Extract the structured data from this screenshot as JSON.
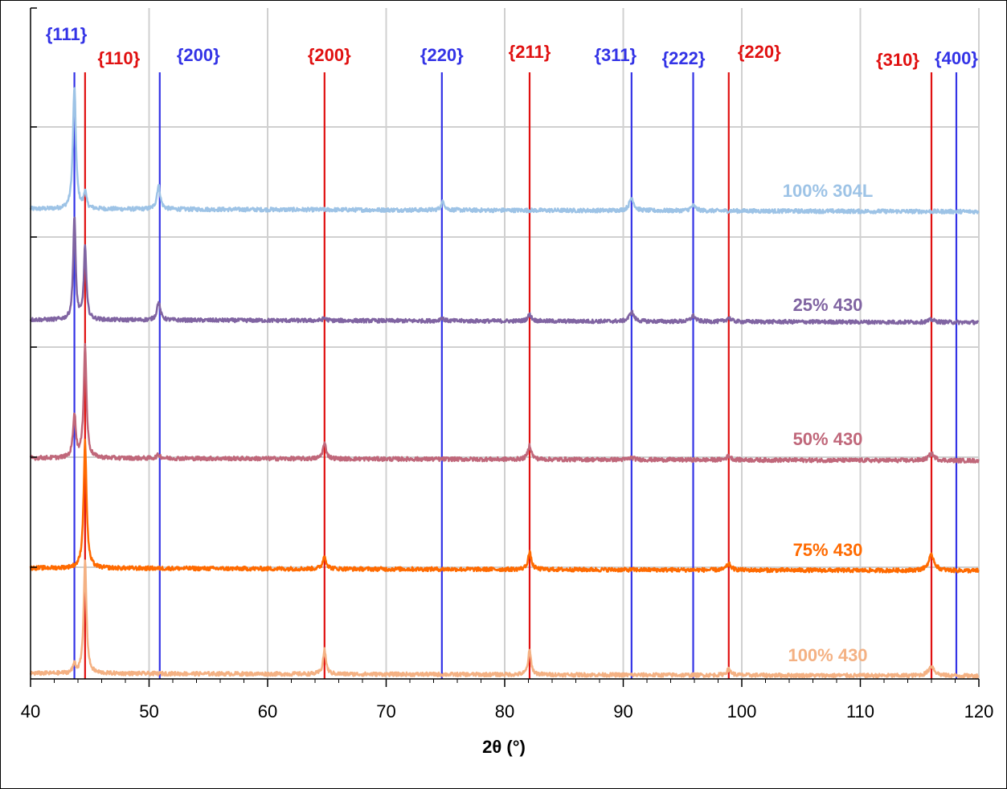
{
  "chart_data": {
    "type": "line",
    "xlabel": "2θ (°)",
    "ylabel": "",
    "xlim": [
      40,
      120
    ],
    "xticks": [
      40,
      50,
      60,
      70,
      80,
      90,
      100,
      110,
      120
    ],
    "grid": true,
    "colors": {
      "fcc_reference": "#3333e6",
      "bcc_reference": "#e01010"
    },
    "reference_lines": [
      {
        "plane": "{111}",
        "x": 43.7,
        "phase": "fcc"
      },
      {
        "plane": "{110}",
        "x": 44.6,
        "phase": "bcc"
      },
      {
        "plane": "{200}",
        "x": 50.9,
        "phase": "fcc"
      },
      {
        "plane": "{200}",
        "x": 64.8,
        "phase": "bcc"
      },
      {
        "plane": "{220}",
        "x": 74.7,
        "phase": "fcc"
      },
      {
        "plane": "{211}",
        "x": 82.1,
        "phase": "bcc"
      },
      {
        "plane": "{311}",
        "x": 90.7,
        "phase": "fcc"
      },
      {
        "plane": "{222}",
        "x": 95.9,
        "phase": "fcc"
      },
      {
        "plane": "{220}",
        "x": 98.9,
        "phase": "bcc"
      },
      {
        "plane": "{310}",
        "x": 116.0,
        "phase": "bcc"
      },
      {
        "plane": "{400}",
        "x": 118.1,
        "phase": "fcc"
      }
    ],
    "series": [
      {
        "name": "100% 304L",
        "color": "#9dc3e6",
        "baseline": 0.2,
        "peaks": [
          [
            43.7,
            3.6,
            0.3
          ],
          [
            44.6,
            0.5,
            0.25
          ],
          [
            50.8,
            0.7,
            0.35
          ],
          [
            74.8,
            0.25,
            0.35
          ],
          [
            90.7,
            0.38,
            0.45
          ],
          [
            95.9,
            0.15,
            0.5
          ]
        ]
      },
      {
        "name": "25% 430",
        "color": "#8064a2",
        "baseline": 0.2,
        "peaks": [
          [
            43.7,
            3.2,
            0.25
          ],
          [
            44.6,
            2.3,
            0.25
          ],
          [
            50.8,
            0.55,
            0.35
          ],
          [
            64.8,
            0.08,
            0.35
          ],
          [
            74.7,
            0.1,
            0.35
          ],
          [
            82.1,
            0.2,
            0.4
          ],
          [
            90.7,
            0.3,
            0.45
          ],
          [
            95.9,
            0.18,
            0.45
          ],
          [
            98.9,
            0.12,
            0.45
          ],
          [
            116.0,
            0.08,
            0.6
          ]
        ]
      },
      {
        "name": "50% 430",
        "color": "#c0677a",
        "baseline": 0.2,
        "peaks": [
          [
            43.7,
            1.3,
            0.28
          ],
          [
            44.6,
            3.35,
            0.28
          ],
          [
            50.8,
            0.1,
            0.4
          ],
          [
            64.8,
            0.45,
            0.35
          ],
          [
            82.1,
            0.42,
            0.35
          ],
          [
            90.7,
            0.06,
            0.5
          ],
          [
            98.9,
            0.12,
            0.45
          ],
          [
            116.0,
            0.2,
            0.6
          ]
        ]
      },
      {
        "name": "75% 430",
        "color": "#ff6a00",
        "baseline": 0.2,
        "peaks": [
          [
            44.6,
            3.75,
            0.3
          ],
          [
            64.8,
            0.38,
            0.35
          ],
          [
            82.1,
            0.5,
            0.35
          ],
          [
            98.9,
            0.18,
            0.45
          ],
          [
            116.0,
            0.45,
            0.6
          ]
        ]
      },
      {
        "name": "100% 430",
        "color": "#f4b183",
        "baseline": 0.2,
        "peaks": [
          [
            43.7,
            0.3,
            0.25
          ],
          [
            44.6,
            3.55,
            0.28
          ],
          [
            64.8,
            0.75,
            0.3
          ],
          [
            82.1,
            0.75,
            0.3
          ],
          [
            98.9,
            0.18,
            0.45
          ],
          [
            116.0,
            0.3,
            0.6
          ]
        ]
      }
    ]
  }
}
